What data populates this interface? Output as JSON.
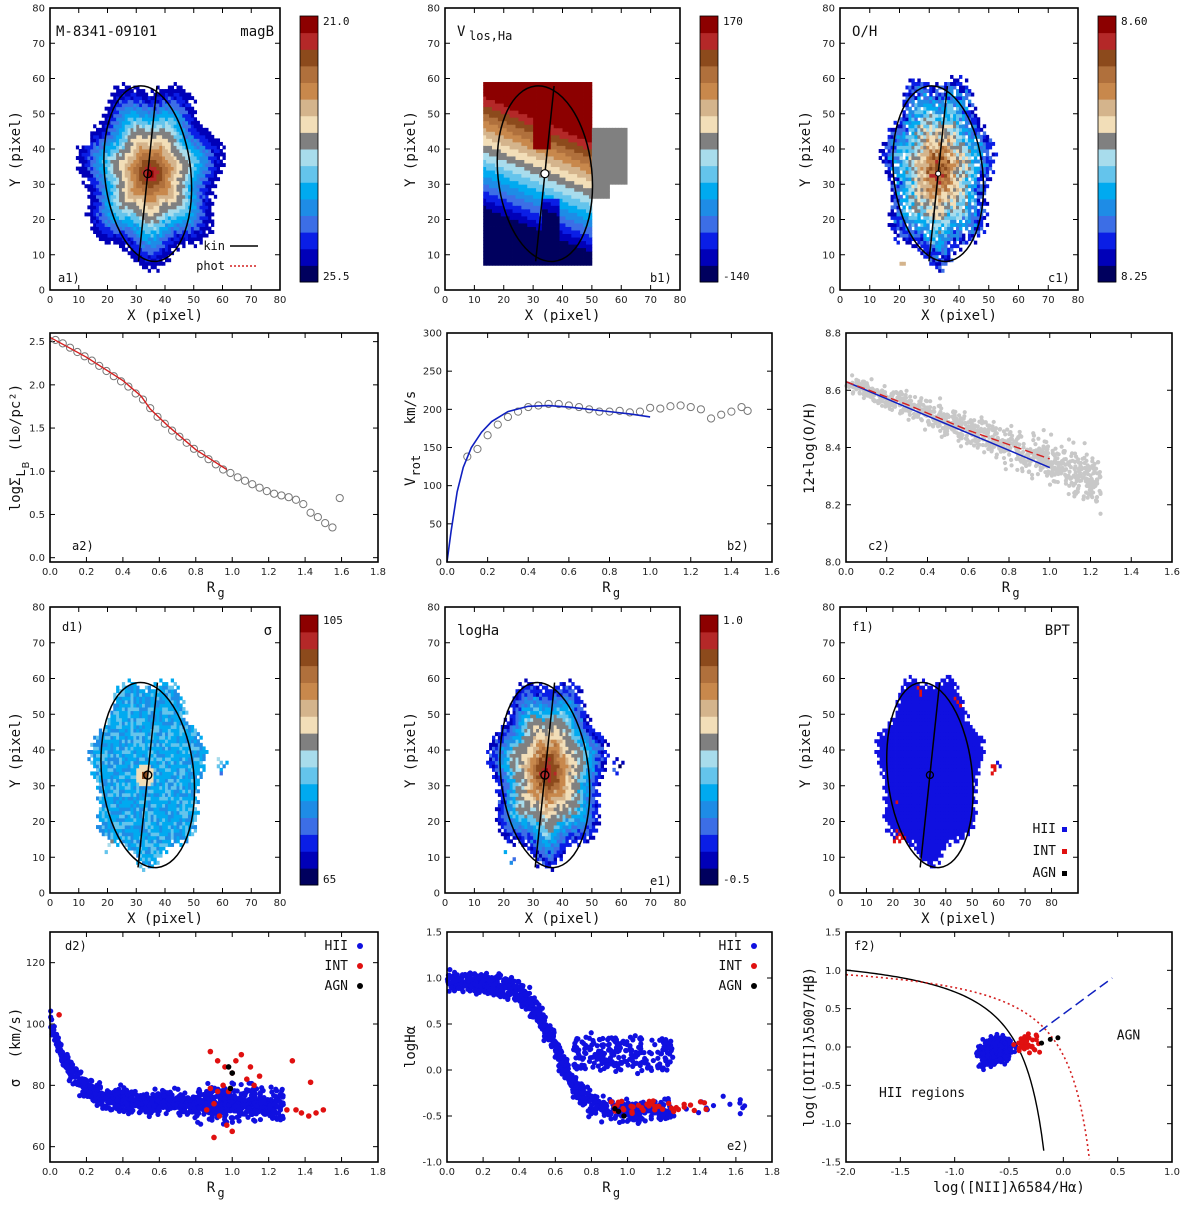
{
  "colors": {
    "hii": "#1010e0",
    "int": "#e01010",
    "agn": "#000000",
    "fit_red": "#d42020",
    "fit_blue": "#1020c0",
    "grey_points": "#c8c8c8",
    "open_points": "#777777",
    "colorbar": [
      "#00005e",
      "#0000b8",
      "#0a1ee6",
      "#3c6ee6",
      "#1e8ce6",
      "#00aaf0",
      "#64c4ec",
      "#a8dcec",
      "#808080",
      "#f2deb8",
      "#d4b48c",
      "#c8884c",
      "#b0703c",
      "#8c4a1c",
      "#b42828",
      "#8c0000"
    ]
  },
  "chart_data": [
    {
      "id": "a1",
      "type": "heatmap",
      "panel_label": "a1)",
      "title": "M-8341-09101",
      "title_right": "magB",
      "xlabel": "X  (pixel)",
      "ylabel": "Y  (pixel)",
      "xlim": [
        0,
        80
      ],
      "ylim": [
        0,
        80
      ],
      "x_ticks": [
        "0",
        "10",
        "20",
        "30",
        "40",
        "50",
        "60",
        "70",
        "80"
      ],
      "y_ticks": [
        "0",
        "10",
        "20",
        "30",
        "40",
        "50",
        "60",
        "70",
        "80"
      ],
      "colorbar": {
        "top": "21.0",
        "bottom": "25.5"
      },
      "legend": [
        {
          "label": "kin",
          "style": "solid"
        },
        {
          "label": "phot",
          "style": "dotted-red"
        }
      ],
      "map": {
        "cx": 34,
        "cy": 33,
        "rx": 21,
        "ry": 27,
        "levels": 16,
        "peak": 15,
        "edge": 3
      }
    },
    {
      "id": "b1",
      "type": "heatmap",
      "panel_label": "b1)",
      "title": "V",
      "title_sub": "los,Ha",
      "xlabel": "X  (pixel)",
      "ylabel": "Y  (pixel)",
      "xlim": [
        0,
        80
      ],
      "ylim": [
        0,
        80
      ],
      "x_ticks": [
        "0",
        "10",
        "20",
        "30",
        "40",
        "50",
        "60",
        "70",
        "80"
      ],
      "y_ticks": [
        "0",
        "10",
        "20",
        "30",
        "40",
        "50",
        "60",
        "70",
        "80"
      ],
      "colorbar": {
        "top": "170",
        "bottom": "-140"
      }
    },
    {
      "id": "c1",
      "type": "heatmap",
      "panel_label": "c1)",
      "title": "O/H",
      "xlabel": "X  (pixel)",
      "ylabel": "Y  (pixel)",
      "xlim": [
        0,
        80
      ],
      "ylim": [
        0,
        80
      ],
      "x_ticks": [
        "0",
        "10",
        "20",
        "30",
        "40",
        "50",
        "60",
        "70",
        "80"
      ],
      "y_ticks": [
        "0",
        "10",
        "20",
        "30",
        "40",
        "50",
        "60",
        "70",
        "80"
      ],
      "colorbar": {
        "top": "8.60",
        "bottom": "8.25"
      }
    },
    {
      "id": "a2",
      "type": "scatter",
      "panel_label": "a2)",
      "xlabel": "R",
      "xlabel_sub": "g",
      "ylabel": "logΣ",
      "ylabel_sub": "L",
      "ylabel_sub2": "B",
      "ylabel_units": "(L⊙/pc²)",
      "xlim": [
        0,
        1.8
      ],
      "ylim": [
        -0.05,
        2.6
      ],
      "x_ticks": [
        "0.0",
        "0.2",
        "0.4",
        "0.6",
        "0.8",
        "1.0",
        "1.2",
        "1.4",
        "1.6",
        "1.8"
      ],
      "y_ticks": [
        "0.0",
        "0.5",
        "1.0",
        "1.5",
        "2.0",
        "2.5"
      ],
      "points": [
        [
          0.03,
          2.52
        ],
        [
          0.07,
          2.48
        ],
        [
          0.11,
          2.43
        ],
        [
          0.15,
          2.38
        ],
        [
          0.19,
          2.33
        ],
        [
          0.23,
          2.28
        ],
        [
          0.27,
          2.22
        ],
        [
          0.31,
          2.16
        ],
        [
          0.35,
          2.1
        ],
        [
          0.39,
          2.04
        ],
        [
          0.43,
          1.98
        ],
        [
          0.47,
          1.9
        ],
        [
          0.51,
          1.83
        ],
        [
          0.55,
          1.73
        ],
        [
          0.59,
          1.63
        ],
        [
          0.63,
          1.55
        ],
        [
          0.67,
          1.47
        ],
        [
          0.71,
          1.4
        ],
        [
          0.75,
          1.33
        ],
        [
          0.79,
          1.26
        ],
        [
          0.83,
          1.2
        ],
        [
          0.87,
          1.14
        ],
        [
          0.91,
          1.08
        ],
        [
          0.95,
          1.02
        ],
        [
          0.99,
          0.98
        ],
        [
          1.03,
          0.93
        ],
        [
          1.07,
          0.89
        ],
        [
          1.11,
          0.85
        ],
        [
          1.15,
          0.81
        ],
        [
          1.19,
          0.77
        ],
        [
          1.23,
          0.74
        ],
        [
          1.27,
          0.72
        ],
        [
          1.31,
          0.7
        ],
        [
          1.35,
          0.67
        ],
        [
          1.39,
          0.62
        ],
        [
          1.43,
          0.52
        ],
        [
          1.47,
          0.47
        ],
        [
          1.51,
          0.4
        ],
        [
          1.55,
          0.35
        ],
        [
          1.59,
          0.69
        ]
      ],
      "fit": [
        [
          0.0,
          2.55
        ],
        [
          0.2,
          2.32
        ],
        [
          0.4,
          2.05
        ],
        [
          0.5,
          1.87
        ],
        [
          0.55,
          1.72
        ],
        [
          0.65,
          1.52
        ],
        [
          0.8,
          1.25
        ],
        [
          0.97,
          1.02
        ]
      ]
    },
    {
      "id": "b2",
      "type": "line",
      "panel_label": "b2)",
      "xlabel": "R",
      "xlabel_sub": "g",
      "ylabel": "V",
      "ylabel_sub": "rot",
      "ylabel_units": "km/s",
      "xlim": [
        0,
        1.6
      ],
      "ylim": [
        0,
        300
      ],
      "x_ticks": [
        "0.0",
        "0.2",
        "0.4",
        "0.6",
        "0.8",
        "1.0",
        "1.2",
        "1.4",
        "1.6"
      ],
      "y_ticks": [
        "0",
        "50",
        "100",
        "150",
        "200",
        "250",
        "300"
      ],
      "points": [
        [
          0.1,
          138
        ],
        [
          0.15,
          148
        ],
        [
          0.2,
          166
        ],
        [
          0.25,
          180
        ],
        [
          0.3,
          190
        ],
        [
          0.35,
          197
        ],
        [
          0.4,
          203
        ],
        [
          0.45,
          205
        ],
        [
          0.5,
          207
        ],
        [
          0.55,
          207
        ],
        [
          0.6,
          205
        ],
        [
          0.65,
          203
        ],
        [
          0.7,
          200
        ],
        [
          0.75,
          197
        ],
        [
          0.8,
          197
        ],
        [
          0.85,
          198
        ],
        [
          0.9,
          196
        ],
        [
          0.95,
          197
        ],
        [
          1.0,
          202
        ],
        [
          1.05,
          201
        ],
        [
          1.1,
          204
        ],
        [
          1.15,
          205
        ],
        [
          1.2,
          203
        ],
        [
          1.25,
          200
        ],
        [
          1.3,
          188
        ],
        [
          1.35,
          193
        ],
        [
          1.4,
          197
        ],
        [
          1.45,
          203
        ],
        [
          1.48,
          198
        ]
      ],
      "fit": [
        [
          0.0,
          0
        ],
        [
          0.02,
          40
        ],
        [
          0.05,
          92
        ],
        [
          0.08,
          124
        ],
        [
          0.12,
          150
        ],
        [
          0.17,
          170
        ],
        [
          0.22,
          184
        ],
        [
          0.3,
          197
        ],
        [
          0.4,
          204
        ],
        [
          0.5,
          205
        ],
        [
          0.6,
          203
        ],
        [
          0.7,
          200
        ],
        [
          0.8,
          197
        ],
        [
          0.9,
          194
        ],
        [
          1.0,
          190
        ]
      ]
    },
    {
      "id": "c2",
      "type": "scatter",
      "panel_label": "c2)",
      "xlabel": "R",
      "xlabel_sub": "g",
      "ylabel": "12+log(O/H)",
      "xlim": [
        0,
        1.6
      ],
      "ylim": [
        8.0,
        8.8
      ],
      "x_ticks": [
        "0.0",
        "0.2",
        "0.4",
        "0.6",
        "0.8",
        "1.0",
        "1.2",
        "1.4",
        "1.6"
      ],
      "y_ticks": [
        "8.0",
        "8.2",
        "8.4",
        "8.6",
        "8.8"
      ],
      "linear_fit": [
        [
          0.0,
          8.63
        ],
        [
          1.0,
          8.33
        ]
      ],
      "dashed_fit": [
        [
          0.0,
          8.63
        ],
        [
          0.3,
          8.55
        ],
        [
          0.6,
          8.46
        ],
        [
          0.8,
          8.41
        ],
        [
          1.0,
          8.36
        ]
      ]
    },
    {
      "id": "d1",
      "type": "heatmap",
      "panel_label": "d1)",
      "title_right": "σ",
      "xlabel": "X  (pixel)",
      "ylabel": "Y  (pixel)",
      "xlim": [
        0,
        80
      ],
      "ylim": [
        0,
        80
      ],
      "x_ticks": [
        "0",
        "10",
        "20",
        "30",
        "40",
        "50",
        "60",
        "70",
        "80"
      ],
      "y_ticks": [
        "0",
        "10",
        "20",
        "30",
        "40",
        "50",
        "60",
        "70",
        "80"
      ],
      "colorbar": {
        "top": "105",
        "bottom": "65"
      }
    },
    {
      "id": "e1",
      "type": "heatmap",
      "panel_label": "e1)",
      "title": "logHa",
      "xlabel": "X  (pixel)",
      "ylabel": "Y  (pixel)",
      "xlim": [
        0,
        80
      ],
      "ylim": [
        0,
        80
      ],
      "x_ticks": [
        "0",
        "10",
        "20",
        "30",
        "40",
        "50",
        "60",
        "70",
        "80"
      ],
      "y_ticks": [
        "0",
        "10",
        "20",
        "30",
        "40",
        "50",
        "60",
        "70",
        "80"
      ],
      "colorbar": {
        "top": "1.0",
        "bottom": "-0.5"
      }
    },
    {
      "id": "f1",
      "type": "heatmap",
      "panel_label": "f1)",
      "title_right": "BPT",
      "xlabel": "X  (pixel)",
      "ylabel": "Y  (pixel)",
      "xlim": [
        0,
        90
      ],
      "ylim": [
        0,
        80
      ],
      "x_ticks": [
        "0",
        "10",
        "20",
        "30",
        "40",
        "50",
        "60",
        "70",
        "80"
      ],
      "y_ticks": [
        "0",
        "10",
        "20",
        "30",
        "40",
        "50",
        "60",
        "70",
        "80"
      ],
      "legend": [
        {
          "label": "HII",
          "color": "hii"
        },
        {
          "label": "INT",
          "color": "int"
        },
        {
          "label": "AGN",
          "color": "agn"
        }
      ]
    },
    {
      "id": "d2",
      "type": "scatter",
      "panel_label": "d2)",
      "xlabel": "R",
      "xlabel_sub": "g",
      "ylabel": "σ",
      "ylabel_units": "(km/s)",
      "xlim": [
        0,
        1.8
      ],
      "ylim": [
        55,
        130
      ],
      "x_ticks": [
        "0.0",
        "0.2",
        "0.4",
        "0.6",
        "0.8",
        "1.0",
        "1.2",
        "1.4",
        "1.6",
        "1.8"
      ],
      "y_ticks": [
        "60",
        "80",
        "100",
        "120"
      ],
      "legend": [
        {
          "label": "HII",
          "color": "hii"
        },
        {
          "label": "INT",
          "color": "int"
        },
        {
          "label": "AGN",
          "color": "agn"
        }
      ]
    },
    {
      "id": "e2",
      "type": "scatter",
      "panel_label": "e2)",
      "xlabel": "R",
      "xlabel_sub": "g",
      "ylabel": "logHα",
      "xlim": [
        0,
        1.8
      ],
      "ylim": [
        -1.0,
        1.5
      ],
      "x_ticks": [
        "0.0",
        "0.2",
        "0.4",
        "0.6",
        "0.8",
        "1.0",
        "1.2",
        "1.4",
        "1.6",
        "1.8"
      ],
      "y_ticks": [
        "-1.0",
        "-0.5",
        "0.0",
        "0.5",
        "1.0",
        "1.5"
      ],
      "legend": [
        {
          "label": "HII",
          "color": "hii"
        },
        {
          "label": "INT",
          "color": "int"
        },
        {
          "label": "AGN",
          "color": "agn"
        }
      ]
    },
    {
      "id": "f2",
      "type": "scatter",
      "panel_label": "f2)",
      "xlabel": "log([NII]λ6584/Hα)",
      "ylabel": "log([OIII]λ5007/Hβ)",
      "xlim": [
        -2.0,
        1.0
      ],
      "ylim": [
        -1.5,
        1.5
      ],
      "x_ticks": [
        "-2.0",
        "-1.5",
        "-1.0",
        "-0.5",
        "0.0",
        "0.5",
        "1.0"
      ],
      "y_ticks": [
        "-1.5",
        "-1.0",
        "-0.5",
        "0.0",
        "0.5",
        "1.0",
        "1.5"
      ],
      "annotations": [
        "AGN",
        "HII regions"
      ]
    }
  ]
}
